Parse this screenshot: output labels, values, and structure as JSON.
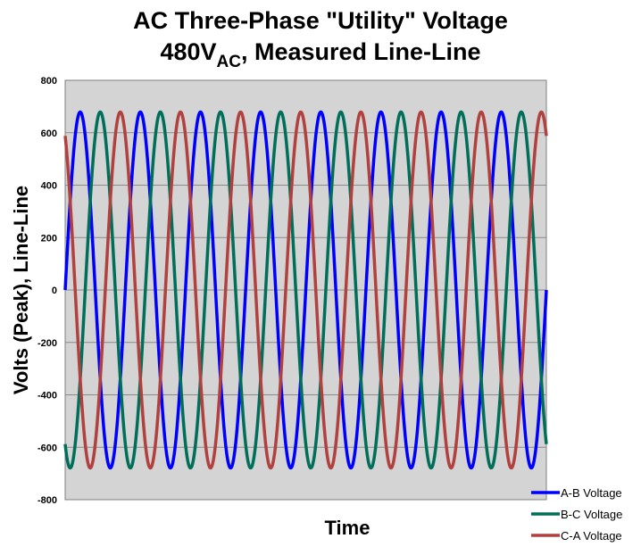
{
  "chart_data": {
    "type": "line",
    "title": "AC Three-Phase \"Utility\" Voltage",
    "subtitle": {
      "main": "480V",
      "subscript": "AC",
      "rest": ", Measured Line-Line"
    },
    "xlabel": "Time",
    "ylabel": "Volts (Peak), Line-Line",
    "ylim": [
      -800,
      800
    ],
    "yticks": [
      800,
      600,
      400,
      200,
      0,
      -200,
      -400,
      -600,
      -800
    ],
    "grid": true,
    "legend_position": "bottom-right",
    "amplitude": 679,
    "cycles": 8,
    "series": [
      {
        "name": "A-B Voltage",
        "color": "#0000ff",
        "phase_deg": 0
      },
      {
        "name": "B-C Voltage",
        "color": "#006f5a",
        "phase_deg": -120
      },
      {
        "name": "C-A Voltage",
        "color": "#b0413e",
        "phase_deg": 120
      }
    ]
  }
}
